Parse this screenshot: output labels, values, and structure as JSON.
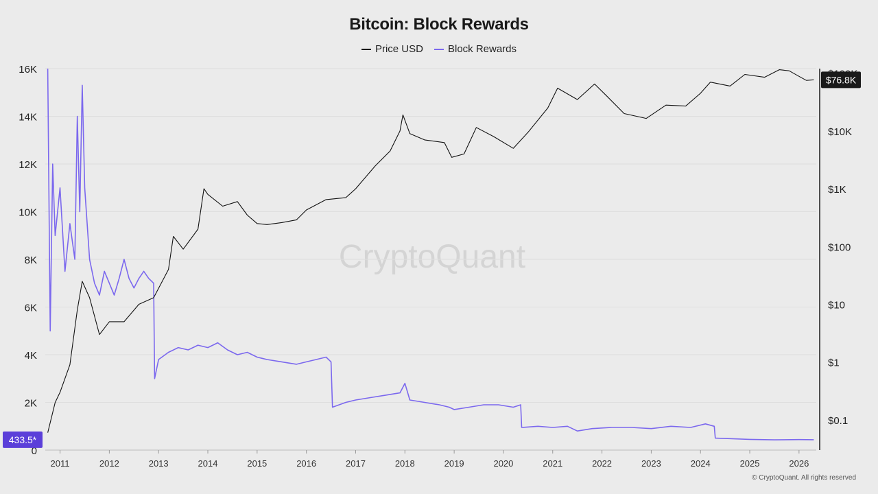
{
  "title": "Bitcoin: Block Rewards",
  "legend": [
    {
      "name": "Price USD",
      "color": "#111111"
    },
    {
      "name": "Block Rewards",
      "color": "#7b68ee"
    }
  ],
  "watermark": "CryptoQuant",
  "footer": "© CryptoQuant. All rights reserved",
  "chart_data": {
    "type": "line",
    "title": "Bitcoin: Block Rewards",
    "x_range": [
      2010.7,
      2026.35
    ],
    "x_ticks": [
      "2011",
      "2012",
      "2013",
      "2014",
      "2015",
      "2016",
      "2017",
      "2018",
      "2019",
      "2020",
      "2021",
      "2022",
      "2023",
      "2024",
      "2025",
      "2026"
    ],
    "y_left": {
      "range": [
        0,
        16000
      ],
      "ticks": [
        "0",
        "2K",
        "4K",
        "6K",
        "8K",
        "10K",
        "12K",
        "14K",
        "16K"
      ],
      "scale": "linear"
    },
    "y_right": {
      "range": [
        0.03,
        120000
      ],
      "ticks": [
        "$0.1",
        "$1",
        "$10",
        "$100",
        "$1K",
        "$10K",
        "$100K"
      ],
      "scale": "log"
    },
    "badges": {
      "left": "433.5*",
      "right": "$76.8K"
    },
    "grid": true,
    "legend_position": "top-center",
    "series": [
      {
        "name": "Block Rewards",
        "axis": "left",
        "color": "#7b68ee",
        "points": [
          [
            2010.75,
            16000
          ],
          [
            2010.8,
            5000
          ],
          [
            2010.85,
            12000
          ],
          [
            2010.9,
            9000
          ],
          [
            2011.0,
            11000
          ],
          [
            2011.1,
            7500
          ],
          [
            2011.2,
            9500
          ],
          [
            2011.3,
            8000
          ],
          [
            2011.35,
            14000
          ],
          [
            2011.4,
            10000
          ],
          [
            2011.45,
            15300
          ],
          [
            2011.5,
            11000
          ],
          [
            2011.6,
            8000
          ],
          [
            2011.7,
            7000
          ],
          [
            2011.8,
            6500
          ],
          [
            2011.9,
            7500
          ],
          [
            2012.0,
            7000
          ],
          [
            2012.1,
            6500
          ],
          [
            2012.2,
            7200
          ],
          [
            2012.3,
            8000
          ],
          [
            2012.4,
            7200
          ],
          [
            2012.5,
            6800
          ],
          [
            2012.6,
            7200
          ],
          [
            2012.7,
            7500
          ],
          [
            2012.8,
            7200
          ],
          [
            2012.9,
            7000
          ],
          [
            2012.92,
            3000
          ],
          [
            2013.0,
            3800
          ],
          [
            2013.2,
            4100
          ],
          [
            2013.4,
            4300
          ],
          [
            2013.6,
            4200
          ],
          [
            2013.8,
            4400
          ],
          [
            2014.0,
            4300
          ],
          [
            2014.2,
            4500
          ],
          [
            2014.4,
            4200
          ],
          [
            2014.6,
            4000
          ],
          [
            2014.8,
            4100
          ],
          [
            2015.0,
            3900
          ],
          [
            2015.2,
            3800
          ],
          [
            2015.5,
            3700
          ],
          [
            2015.8,
            3600
          ],
          [
            2016.0,
            3700
          ],
          [
            2016.2,
            3800
          ],
          [
            2016.4,
            3900
          ],
          [
            2016.5,
            3700
          ],
          [
            2016.53,
            1800
          ],
          [
            2016.8,
            2000
          ],
          [
            2017.0,
            2100
          ],
          [
            2017.3,
            2200
          ],
          [
            2017.6,
            2300
          ],
          [
            2017.9,
            2400
          ],
          [
            2018.0,
            2800
          ],
          [
            2018.1,
            2100
          ],
          [
            2018.4,
            2000
          ],
          [
            2018.7,
            1900
          ],
          [
            2018.9,
            1800
          ],
          [
            2019.0,
            1700
          ],
          [
            2019.3,
            1800
          ],
          [
            2019.6,
            1900
          ],
          [
            2019.9,
            1900
          ],
          [
            2020.2,
            1800
          ],
          [
            2020.35,
            1900
          ],
          [
            2020.37,
            950
          ],
          [
            2020.7,
            1000
          ],
          [
            2021.0,
            950
          ],
          [
            2021.3,
            1000
          ],
          [
            2021.5,
            800
          ],
          [
            2021.8,
            900
          ],
          [
            2022.2,
            950
          ],
          [
            2022.6,
            950
          ],
          [
            2023.0,
            900
          ],
          [
            2023.4,
            1000
          ],
          [
            2023.8,
            950
          ],
          [
            2024.1,
            1100
          ],
          [
            2024.28,
            1000
          ],
          [
            2024.3,
            500
          ],
          [
            2024.6,
            480
          ],
          [
            2025.0,
            450
          ],
          [
            2025.5,
            430
          ],
          [
            2026.0,
            440
          ],
          [
            2026.3,
            433.5
          ]
        ]
      },
      {
        "name": "Price USD",
        "axis": "right",
        "color": "#111111",
        "points": [
          [
            2010.75,
            0.06
          ],
          [
            2010.9,
            0.2
          ],
          [
            2011.0,
            0.3
          ],
          [
            2011.2,
            0.9
          ],
          [
            2011.35,
            8
          ],
          [
            2011.45,
            25
          ],
          [
            2011.6,
            13
          ],
          [
            2011.8,
            3
          ],
          [
            2012.0,
            5
          ],
          [
            2012.3,
            5
          ],
          [
            2012.6,
            10
          ],
          [
            2012.9,
            13
          ],
          [
            2013.2,
            40
          ],
          [
            2013.3,
            150
          ],
          [
            2013.5,
            90
          ],
          [
            2013.8,
            200
          ],
          [
            2013.92,
            1000
          ],
          [
            2014.0,
            800
          ],
          [
            2014.3,
            500
          ],
          [
            2014.6,
            600
          ],
          [
            2014.8,
            350
          ],
          [
            2015.0,
            250
          ],
          [
            2015.2,
            240
          ],
          [
            2015.5,
            260
          ],
          [
            2015.8,
            290
          ],
          [
            2016.0,
            430
          ],
          [
            2016.4,
            650
          ],
          [
            2016.8,
            700
          ],
          [
            2017.0,
            1000
          ],
          [
            2017.4,
            2500
          ],
          [
            2017.7,
            4500
          ],
          [
            2017.9,
            10000
          ],
          [
            2017.96,
            19000
          ],
          [
            2018.1,
            9000
          ],
          [
            2018.4,
            7000
          ],
          [
            2018.8,
            6300
          ],
          [
            2018.95,
            3500
          ],
          [
            2019.2,
            4000
          ],
          [
            2019.45,
            11500
          ],
          [
            2019.8,
            8000
          ],
          [
            2020.2,
            5000
          ],
          [
            2020.5,
            9500
          ],
          [
            2020.9,
            25000
          ],
          [
            2021.1,
            55000
          ],
          [
            2021.5,
            35000
          ],
          [
            2021.85,
            65000
          ],
          [
            2022.1,
            40000
          ],
          [
            2022.45,
            20000
          ],
          [
            2022.9,
            16500
          ],
          [
            2023.3,
            28000
          ],
          [
            2023.7,
            27000
          ],
          [
            2024.0,
            45000
          ],
          [
            2024.2,
            70000
          ],
          [
            2024.6,
            60000
          ],
          [
            2024.9,
            95000
          ],
          [
            2025.3,
            85000
          ],
          [
            2025.6,
            115000
          ],
          [
            2025.8,
            110000
          ],
          [
            2026.0,
            88000
          ],
          [
            2026.15,
            75000
          ],
          [
            2026.3,
            76800
          ]
        ]
      }
    ]
  }
}
